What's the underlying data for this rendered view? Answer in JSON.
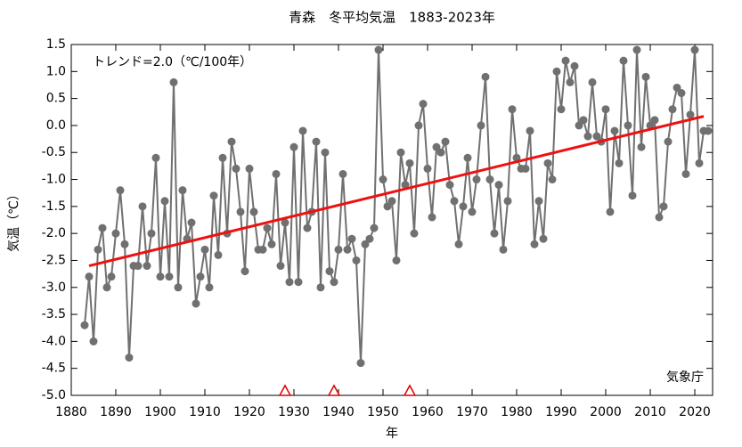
{
  "chart_data": {
    "type": "line",
    "title": "青森　冬平均気温　1883-2023年",
    "xlabel": "年",
    "ylabel": "気温（℃）",
    "annotations": [
      "トレンド=2.0（℃/100年）",
      "気象庁"
    ],
    "x": [
      1883,
      1884,
      1885,
      1886,
      1887,
      1888,
      1889,
      1890,
      1891,
      1892,
      1893,
      1894,
      1895,
      1896,
      1897,
      1898,
      1899,
      1900,
      1901,
      1902,
      1903,
      1904,
      1905,
      1906,
      1907,
      1908,
      1909,
      1910,
      1911,
      1912,
      1913,
      1914,
      1915,
      1916,
      1917,
      1918,
      1919,
      1920,
      1921,
      1922,
      1923,
      1924,
      1925,
      1926,
      1927,
      1928,
      1929,
      1930,
      1931,
      1932,
      1933,
      1934,
      1935,
      1936,
      1937,
      1938,
      1939,
      1940,
      1941,
      1942,
      1943,
      1944,
      1945,
      1946,
      1947,
      1948,
      1949,
      1950,
      1951,
      1952,
      1953,
      1954,
      1955,
      1956,
      1957,
      1958,
      1959,
      1960,
      1961,
      1962,
      1963,
      1964,
      1965,
      1966,
      1967,
      1968,
      1969,
      1970,
      1971,
      1972,
      1973,
      1974,
      1975,
      1976,
      1977,
      1978,
      1979,
      1980,
      1981,
      1982,
      1983,
      1984,
      1985,
      1986,
      1987,
      1988,
      1989,
      1990,
      1991,
      1992,
      1993,
      1994,
      1995,
      1996,
      1997,
      1998,
      1999,
      2000,
      2001,
      2002,
      2003,
      2004,
      2005,
      2006,
      2007,
      2008,
      2009,
      2010,
      2011,
      2012,
      2013,
      2014,
      2015,
      2016,
      2017,
      2018,
      2019,
      2020,
      2021,
      2022,
      2023
    ],
    "series": [
      {
        "color": "#707070",
        "values": [
          -3.7,
          -2.8,
          -4.0,
          -2.3,
          -1.9,
          -3.0,
          -2.8,
          -2.0,
          -1.2,
          -2.2,
          -4.3,
          -2.6,
          -2.6,
          -1.5,
          -2.6,
          -2.0,
          -0.6,
          -2.8,
          -1.4,
          -2.8,
          0.8,
          -3.0,
          -1.2,
          -2.1,
          -1.8,
          -3.3,
          -2.8,
          -2.3,
          -3.0,
          -1.3,
          -2.4,
          -0.6,
          -2.0,
          -0.3,
          -0.8,
          -1.6,
          -2.7,
          -0.8,
          -1.6,
          -2.3,
          -2.3,
          -1.9,
          -2.2,
          -0.9,
          -2.6,
          -1.8,
          -2.9,
          -0.4,
          -2.9,
          -0.1,
          -1.9,
          -1.6,
          -0.3,
          -3.0,
          -0.5,
          -2.7,
          -2.9,
          -2.3,
          -0.9,
          -2.3,
          -2.1,
          -2.5,
          -4.4,
          -2.2,
          -2.1,
          -1.9,
          1.4,
          -1.0,
          -1.5,
          -1.4,
          -2.5,
          -0.5,
          -1.1,
          -0.7,
          -2.0,
          0.0,
          0.4,
          -0.8,
          -1.7,
          -0.4,
          -0.5,
          -0.3,
          -1.1,
          -1.4,
          -2.2,
          -1.5,
          -0.6,
          -1.6,
          -1.0,
          0.0,
          0.9,
          -1.0,
          -2.0,
          -1.1,
          -2.3,
          -1.4,
          0.3,
          -0.6,
          -0.8,
          -0.8,
          -0.1,
          -2.2,
          -1.4,
          -2.1,
          -0.7,
          -1.0,
          1.0,
          0.3,
          1.2,
          0.8,
          1.1,
          0.0,
          0.1,
          -0.2,
          0.8,
          -0.2,
          -0.3,
          0.3,
          -1.6,
          -0.1,
          -0.7,
          1.2,
          0.0,
          -1.3,
          1.4,
          -0.4,
          0.9,
          0.0,
          0.1,
          -1.7,
          -1.5,
          -0.3,
          0.3,
          0.7,
          0.6,
          -0.9,
          0.2,
          1.4,
          -0.7,
          -0.1,
          -0.1
        ]
      }
    ],
    "trend": {
      "x": [
        1884,
        2022
      ],
      "values": [
        -2.6,
        0.17
      ],
      "color": "#ee1111"
    },
    "markers_x": [
      1928,
      1939,
      1956
    ],
    "marker_color": "#dd0000",
    "xlim": [
      1880,
      2024
    ],
    "ylim": [
      -5.0,
      1.5
    ],
    "xticks": [
      1880,
      1890,
      1900,
      1910,
      1920,
      1930,
      1940,
      1950,
      1960,
      1970,
      1980,
      1990,
      2000,
      2010,
      2020
    ],
    "yticks": [
      1.5,
      {
        "value": 1,
        "label": "1.0"
      },
      0.5,
      {
        "value": 0,
        "label": "0.0"
      },
      -0.5,
      {
        "value": -1,
        "label": "-1.0"
      },
      -1.5,
      {
        "value": -2,
        "label": "-2.0"
      },
      -2.5,
      {
        "value": -3,
        "label": "-3.0"
      },
      -3.5,
      {
        "value": -4,
        "label": "-4.0"
      },
      -4.5,
      {
        "value": -5,
        "label": "-5.0"
      }
    ]
  }
}
